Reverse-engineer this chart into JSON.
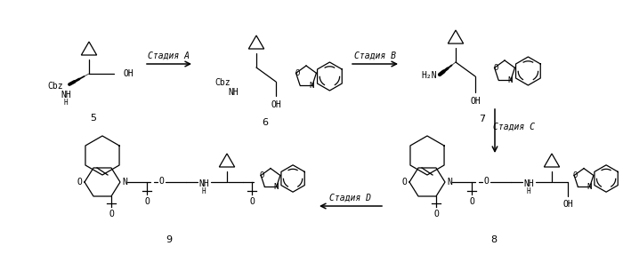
{
  "bg": "#ffffff",
  "lw": 0.9,
  "arrow_lw": 1.1,
  "font_mono": "DejaVu Sans Mono",
  "label_A": "Стадия А",
  "label_B": "Стадия B",
  "label_C": "Стадия C",
  "label_D": "Стадия D",
  "num5": "5",
  "num6": "6",
  "num7": "7",
  "num8": "8",
  "num9": "9"
}
